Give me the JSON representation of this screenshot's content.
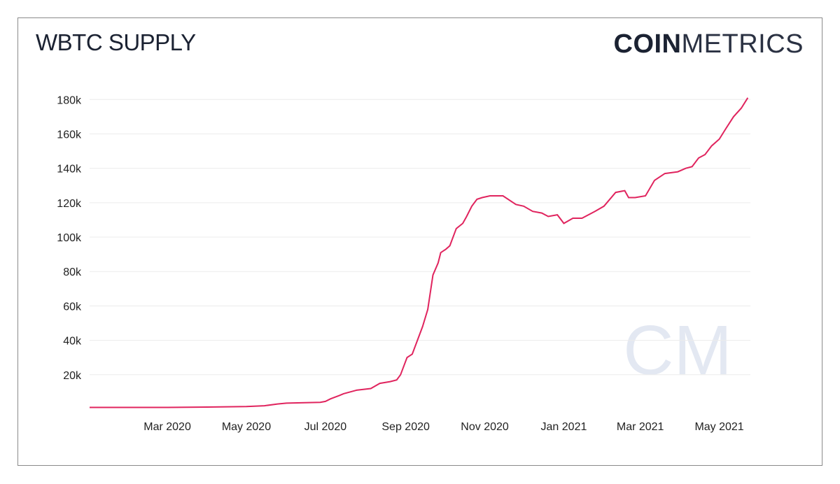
{
  "header": {
    "title": "WBTC SUPPLY",
    "logo_bold": "COIN",
    "logo_light": "METRICS",
    "watermark": "CM"
  },
  "colors": {
    "line": "#e0245e",
    "grid": "#ececec",
    "text": "#1b2232"
  },
  "chart_data": {
    "type": "line",
    "title": "WBTC SUPPLY",
    "xlabel": "",
    "ylabel": "",
    "grid": true,
    "legend": "none",
    "xlim": [
      "2020-01-01",
      "2021-05-25"
    ],
    "ylim": [
      0,
      185000
    ],
    "y_ticks": [
      20000,
      40000,
      60000,
      80000,
      100000,
      120000,
      140000,
      160000,
      180000
    ],
    "y_tick_labels": [
      "20k",
      "40k",
      "60k",
      "80k",
      "100k",
      "120k",
      "140k",
      "160k",
      "180k"
    ],
    "x_ticks": [
      "2020-03-01",
      "2020-05-01",
      "2020-07-01",
      "2020-09-01",
      "2020-11-01",
      "2021-01-01",
      "2021-03-01",
      "2021-05-01"
    ],
    "x_tick_labels": [
      "Mar 2020",
      "May 2020",
      "Jul 2020",
      "Sep 2020",
      "Nov 2020",
      "Jan 2021",
      "Mar 2021",
      "May 2021"
    ],
    "series": [
      {
        "x": [
          "2020-01-01",
          "2020-02-01",
          "2020-03-01",
          "2020-04-01",
          "2020-05-01",
          "2020-05-15",
          "2020-05-25",
          "2020-06-01",
          "2020-06-15",
          "2020-06-27",
          "2020-07-01",
          "2020-07-05",
          "2020-07-12",
          "2020-07-15",
          "2020-07-25",
          "2020-08-05",
          "2020-08-12",
          "2020-08-20",
          "2020-08-25",
          "2020-08-28",
          "2020-09-02",
          "2020-09-06",
          "2020-09-10",
          "2020-09-14",
          "2020-09-18",
          "2020-09-22",
          "2020-09-26",
          "2020-09-28",
          "2020-10-02",
          "2020-10-05",
          "2020-10-10",
          "2020-10-15",
          "2020-10-18",
          "2020-10-22",
          "2020-10-26",
          "2020-10-30",
          "2020-11-05",
          "2020-11-15",
          "2020-11-25",
          "2020-12-01",
          "2020-12-08",
          "2020-12-15",
          "2020-12-20",
          "2020-12-27",
          "2021-01-01",
          "2021-01-08",
          "2021-01-15",
          "2021-01-25",
          "2021-02-01",
          "2021-02-10",
          "2021-02-17",
          "2021-02-20",
          "2021-02-25",
          "2021-03-05",
          "2021-03-12",
          "2021-03-20",
          "2021-03-30",
          "2021-04-05",
          "2021-04-10",
          "2021-04-15",
          "2021-04-20",
          "2021-04-25",
          "2021-05-01",
          "2021-05-06",
          "2021-05-12",
          "2021-05-18",
          "2021-05-23"
        ],
        "values": [
          1000,
          1000,
          1000,
          1200,
          1500,
          2000,
          3000,
          3500,
          3800,
          4000,
          4500,
          6000,
          8000,
          9000,
          11000,
          12000,
          15000,
          16000,
          17000,
          20000,
          30000,
          32000,
          40000,
          48000,
          58000,
          78000,
          85000,
          91000,
          93000,
          95000,
          105000,
          108000,
          112000,
          118000,
          122000,
          123000,
          124000,
          124000,
          119000,
          118000,
          115000,
          114000,
          112000,
          113000,
          108000,
          111000,
          111000,
          115000,
          118000,
          126000,
          127000,
          123000,
          123000,
          124000,
          133000,
          137000,
          138000,
          140000,
          141000,
          146000,
          148000,
          153000,
          157000,
          163000,
          170000,
          175000,
          181000
        ]
      }
    ]
  }
}
